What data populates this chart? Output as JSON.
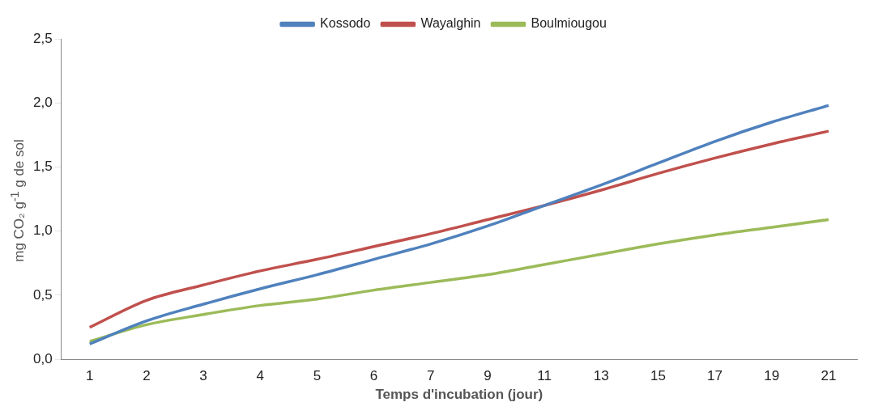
{
  "chart_data": {
    "type": "line",
    "xlabel": "Temps d'incubation (jour)",
    "ylabel": "mg CO₂ g$^{-1}$ g de sol",
    "categories": [
      "1",
      "2",
      "3",
      "4",
      "5",
      "6",
      "7",
      "9",
      "11",
      "13",
      "15",
      "17",
      "19",
      "21"
    ],
    "series": [
      {
        "name": "Kossodo",
        "color": "#4f81bd",
        "values": [
          0.12,
          0.3,
          0.43,
          0.55,
          0.66,
          0.78,
          0.9,
          1.04,
          1.2,
          1.36,
          1.53,
          1.7,
          1.85,
          1.98
        ]
      },
      {
        "name": "Wayalghin",
        "color": "#c0504d",
        "values": [
          0.25,
          0.46,
          0.58,
          0.69,
          0.78,
          0.88,
          0.98,
          1.09,
          1.2,
          1.32,
          1.45,
          1.57,
          1.68,
          1.78
        ]
      },
      {
        "name": "Boulmiougou",
        "color": "#9bbb59",
        "values": [
          0.14,
          0.27,
          0.35,
          0.42,
          0.47,
          0.54,
          0.6,
          0.66,
          0.74,
          0.82,
          0.9,
          0.97,
          1.03,
          1.09
        ]
      }
    ],
    "ylim": [
      0,
      2.5
    ],
    "yticks": [
      {
        "value": 0,
        "label": "0,0"
      },
      {
        "value": 0.5,
        "label": "0,5"
      },
      {
        "value": 1,
        "label": "1,0"
      },
      {
        "value": 1.5,
        "label": "1,5"
      },
      {
        "value": 2,
        "label": "2,0"
      },
      {
        "value": 2.5,
        "label": "2,5"
      }
    ],
    "grid": false,
    "legend": "top",
    "marker": "none",
    "line_style": "solid"
  }
}
